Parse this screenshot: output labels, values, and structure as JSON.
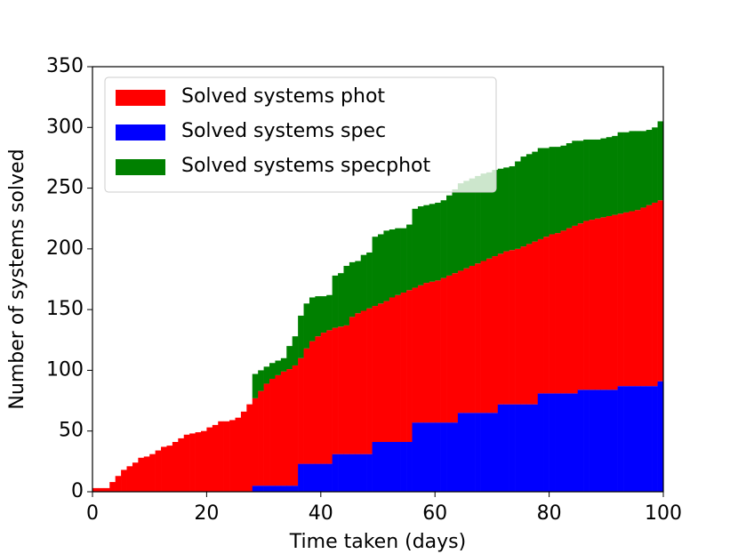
{
  "chart_data": {
    "type": "bar",
    "stacked": true,
    "x_label": "Time taken (days)",
    "y_label": "Number of systems solved",
    "x": [
      0,
      1,
      2,
      3,
      4,
      5,
      6,
      7,
      8,
      9,
      10,
      11,
      12,
      13,
      14,
      15,
      16,
      17,
      18,
      19,
      20,
      21,
      22,
      23,
      24,
      25,
      26,
      27,
      28,
      29,
      30,
      31,
      32,
      33,
      34,
      35,
      36,
      37,
      38,
      39,
      40,
      41,
      42,
      43,
      44,
      45,
      46,
      47,
      48,
      49,
      50,
      51,
      52,
      53,
      54,
      55,
      56,
      57,
      58,
      59,
      60,
      61,
      62,
      63,
      64,
      65,
      66,
      67,
      68,
      69,
      70,
      71,
      72,
      73,
      74,
      75,
      76,
      77,
      78,
      79,
      80,
      81,
      82,
      83,
      84,
      85,
      86,
      87,
      88,
      89,
      90,
      91,
      92,
      93,
      94,
      95,
      96,
      97,
      98,
      99
    ],
    "series": [
      {
        "name": "Solved systems phot",
        "color": "#ff0000",
        "values": [
          3,
          3,
          3,
          8,
          13,
          18,
          21,
          24,
          28,
          29,
          31,
          34,
          37,
          38,
          41,
          44,
          47,
          48,
          49,
          50,
          53,
          55,
          58,
          58,
          59,
          61,
          66,
          72,
          72,
          78,
          84,
          88,
          91,
          94,
          96,
          99,
          87,
          95,
          101,
          105,
          108,
          110,
          104,
          105,
          106,
          113,
          116,
          118,
          120,
          112,
          114,
          116,
          119,
          121,
          123,
          125,
          111,
          113,
          115,
          116,
          117,
          119,
          121,
          123,
          117,
          119,
          121,
          123,
          125,
          127,
          129,
          124,
          126,
          127,
          128,
          130,
          132,
          134,
          127,
          129,
          131,
          132,
          134,
          136,
          138,
          137,
          139,
          140,
          141,
          142,
          143,
          144,
          142,
          143,
          144,
          145,
          147,
          149,
          151,
          149
        ]
      },
      {
        "name": "Solved systems spec",
        "color": "#0000ff",
        "values": [
          0,
          0,
          0,
          0,
          0,
          0,
          0,
          0,
          0,
          0,
          0,
          0,
          0,
          0,
          0,
          0,
          0,
          0,
          0,
          0,
          0,
          0,
          0,
          0,
          0,
          0,
          0,
          0,
          5,
          5,
          5,
          5,
          5,
          5,
          5,
          5,
          23,
          23,
          23,
          23,
          23,
          23,
          31,
          31,
          31,
          31,
          31,
          31,
          31,
          41,
          41,
          41,
          41,
          41,
          41,
          41,
          57,
          57,
          57,
          57,
          57,
          57,
          57,
          57,
          65,
          65,
          65,
          65,
          65,
          65,
          65,
          72,
          72,
          72,
          72,
          72,
          72,
          72,
          81,
          81,
          81,
          81,
          81,
          81,
          81,
          84,
          84,
          84,
          84,
          84,
          84,
          84,
          87,
          87,
          87,
          87,
          87,
          87,
          87,
          91
        ]
      },
      {
        "name": "Solved systems specphot",
        "color": "#008000",
        "values": [
          0,
          0,
          0,
          0,
          0,
          0,
          0,
          0,
          0,
          0,
          0,
          0,
          0,
          0,
          0,
          0,
          0,
          0,
          0,
          0,
          0,
          0,
          0,
          0,
          0,
          0,
          0,
          0,
          20,
          17,
          14,
          13,
          12,
          11,
          19,
          24,
          35,
          37,
          36,
          33,
          30,
          29,
          43,
          44,
          49,
          45,
          43,
          46,
          46,
          57,
          57,
          58,
          56,
          55,
          53,
          54,
          65,
          65,
          64,
          64,
          64,
          64,
          66,
          69,
          72,
          72,
          72,
          72,
          72,
          71,
          71,
          70,
          69,
          69,
          72,
          74,
          74,
          74,
          75,
          73,
          72,
          71,
          70,
          70,
          70,
          68,
          67,
          66,
          65,
          65,
          65,
          65,
          67,
          66,
          66,
          65,
          63,
          62,
          62,
          65
        ]
      }
    ],
    "xlim": [
      0,
      100
    ],
    "xticks": [
      0,
      20,
      40,
      60,
      80,
      100
    ],
    "ylim": [
      0,
      350
    ],
    "yticks": [
      0,
      50,
      100,
      150,
      200,
      250,
      300,
      350
    ],
    "legend": "upper left"
  }
}
